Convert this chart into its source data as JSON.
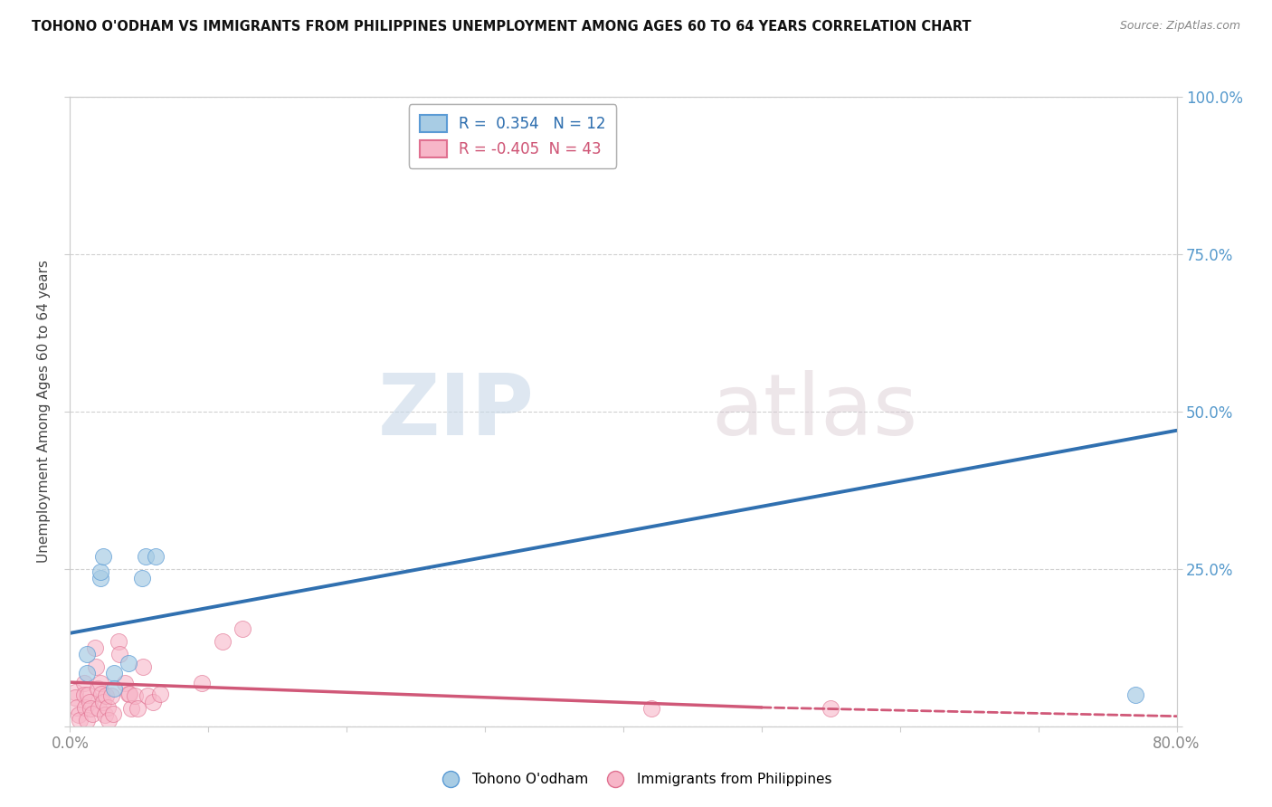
{
  "title": "TOHONO O'ODHAM VS IMMIGRANTS FROM PHILIPPINES UNEMPLOYMENT AMONG AGES 60 TO 64 YEARS CORRELATION CHART",
  "source": "Source: ZipAtlas.com",
  "ylabel": "Unemployment Among Ages 60 to 64 years",
  "xlim": [
    0.0,
    0.8
  ],
  "ylim": [
    0.0,
    1.0
  ],
  "xticks": [
    0.0,
    0.1,
    0.2,
    0.3,
    0.4,
    0.5,
    0.6,
    0.7,
    0.8
  ],
  "xticklabels": [
    "0.0%",
    "",
    "",
    "",
    "",
    "",
    "",
    "",
    "80.0%"
  ],
  "yticks": [
    0.0,
    0.25,
    0.5,
    0.75,
    1.0
  ],
  "yticklabels_right": [
    "",
    "25.0%",
    "50.0%",
    "75.0%",
    "100.0%"
  ],
  "blue_color": "#a8cce4",
  "pink_color": "#f7b6c8",
  "blue_edge_color": "#5b9bd5",
  "pink_edge_color": "#e07090",
  "blue_line_color": "#3070b0",
  "pink_line_color": "#d05878",
  "legend_R_blue": "0.354",
  "legend_N_blue": "12",
  "legend_R_pink": "-0.405",
  "legend_N_pink": "43",
  "blue_points_x": [
    0.012,
    0.012,
    0.022,
    0.022,
    0.024,
    0.032,
    0.032,
    0.042,
    0.052,
    0.055,
    0.062,
    0.77
  ],
  "blue_points_y": [
    0.115,
    0.085,
    0.235,
    0.245,
    0.27,
    0.085,
    0.06,
    0.1,
    0.235,
    0.27,
    0.27,
    0.05
  ],
  "pink_points_x": [
    0.004,
    0.004,
    0.005,
    0.006,
    0.007,
    0.01,
    0.01,
    0.011,
    0.012,
    0.013,
    0.014,
    0.015,
    0.016,
    0.018,
    0.019,
    0.02,
    0.021,
    0.022,
    0.023,
    0.024,
    0.025,
    0.026,
    0.027,
    0.028,
    0.03,
    0.031,
    0.035,
    0.036,
    0.04,
    0.042,
    0.043,
    0.044,
    0.047,
    0.049,
    0.053,
    0.056,
    0.06,
    0.065,
    0.095,
    0.11,
    0.125,
    0.42,
    0.55
  ],
  "pink_points_y": [
    0.055,
    0.045,
    0.03,
    0.018,
    0.01,
    0.068,
    0.05,
    0.03,
    0.01,
    0.05,
    0.038,
    0.028,
    0.02,
    0.125,
    0.095,
    0.06,
    0.028,
    0.068,
    0.052,
    0.038,
    0.018,
    0.048,
    0.03,
    0.01,
    0.048,
    0.02,
    0.135,
    0.115,
    0.068,
    0.052,
    0.052,
    0.028,
    0.048,
    0.028,
    0.095,
    0.048,
    0.038,
    0.052,
    0.068,
    0.135,
    0.155,
    0.028,
    0.028
  ],
  "blue_trend_x0": 0.0,
  "blue_trend_y0": 0.148,
  "blue_trend_x1": 0.8,
  "blue_trend_y1": 0.47,
  "pink_trend_x0": 0.0,
  "pink_trend_y0": 0.07,
  "pink_trend_solid_x1": 0.5,
  "pink_trend_solid_y1": 0.03,
  "pink_trend_dashed_x1": 0.8,
  "pink_trend_dashed_y1": 0.016,
  "watermark_zip": "ZIP",
  "watermark_atlas": "atlas",
  "background_color": "#ffffff",
  "grid_color": "#cccccc",
  "tick_color_right": "#5599cc",
  "tick_color_bottom": "#888888",
  "spine_color": "#cccccc"
}
